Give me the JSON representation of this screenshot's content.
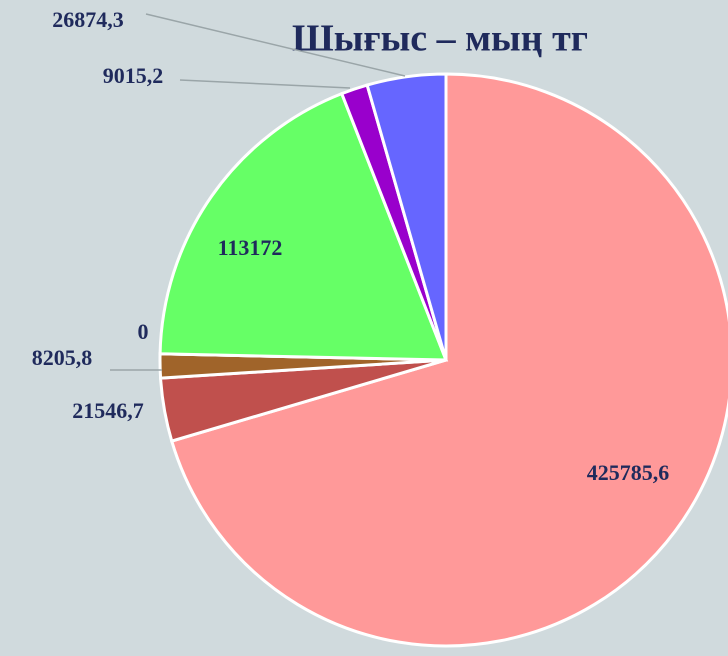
{
  "chart_data": {
    "type": "pie",
    "title": "Шығыс – мың тг",
    "values": [
      425785.6,
      21546.7,
      8205.8,
      0,
      113172,
      9015.2,
      26874.3
    ],
    "value_labels": [
      "425785,6",
      "21546,7",
      "8205,8",
      "0",
      "113172",
      "9015,2",
      "26874,3"
    ],
    "colors": [
      "#ff9999",
      "#c0504d",
      "#a0642a",
      "#888888",
      "#66ff66",
      "#9900cc",
      "#6666ff"
    ]
  }
}
